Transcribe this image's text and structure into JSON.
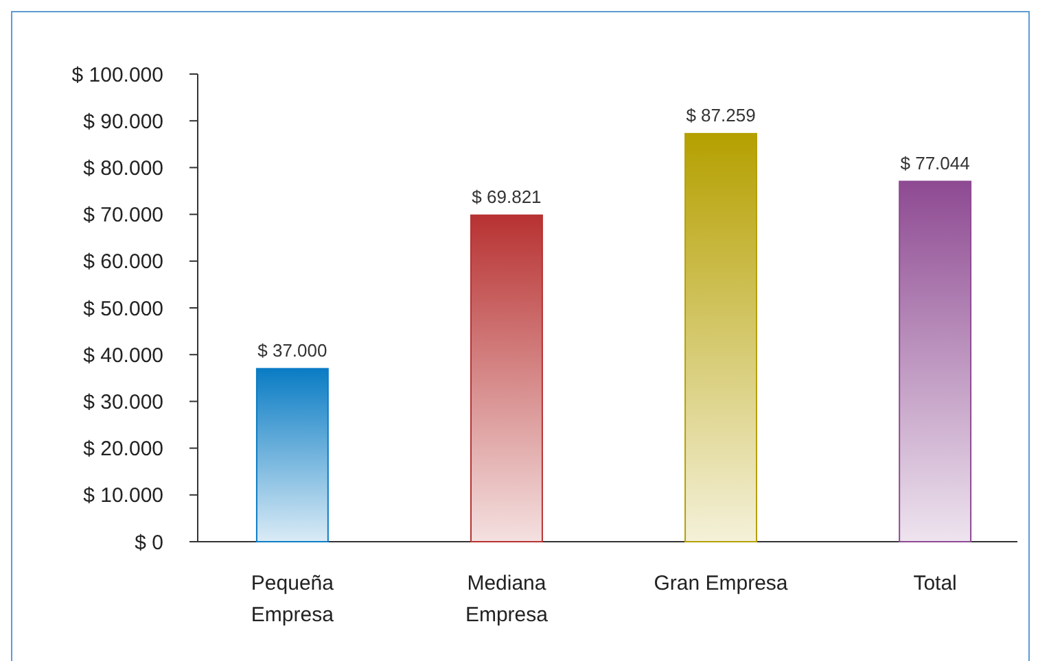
{
  "chart_data": {
    "type": "bar",
    "categories": [
      "Pequeña Empresa",
      "Mediana Empresa",
      "Gran Empresa",
      "Total"
    ],
    "values": [
      37000,
      69821,
      87259,
      77044
    ],
    "colors": [
      "#0a7cc4",
      "#b83232",
      "#b5a000",
      "#8e4a92"
    ],
    "value_labels": [
      "$ 37.000",
      "$ 69.821",
      "$ 87.259",
      "$ 77.044"
    ],
    "ylim": [
      0,
      100000
    ],
    "yticks": [
      {
        "value": 0,
        "label": "$ 0"
      },
      {
        "value": 10000,
        "label": "$ 10.000"
      },
      {
        "value": 20000,
        "label": "$ 20.000"
      },
      {
        "value": 30000,
        "label": "$ 30.000"
      },
      {
        "value": 40000,
        "label": "$ 40.000"
      },
      {
        "value": 50000,
        "label": "$ 50.000"
      },
      {
        "value": 60000,
        "label": "$ 60.000"
      },
      {
        "value": 70000,
        "label": "$ 70.000"
      },
      {
        "value": 80000,
        "label": "$ 80.000"
      },
      {
        "value": 90000,
        "label": "$ 90.000"
      },
      {
        "value": 100000,
        "label": "$ 100.000"
      }
    ],
    "grid": false
  }
}
